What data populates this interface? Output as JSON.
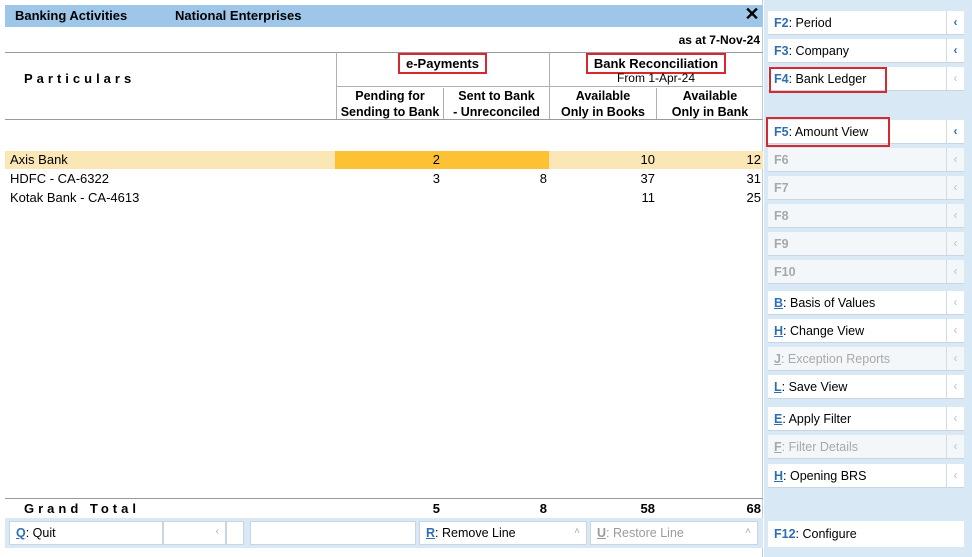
{
  "title": {
    "report": "Banking Activities",
    "company": "National Enterprises"
  },
  "as_at": "as at 7-Nov-24",
  "header": {
    "particulars": "Particulars",
    "epayments": "e-Payments",
    "bank_recon": "Bank Reconciliation",
    "bank_recon_sub": "From 1-Apr-24",
    "col1": [
      "Pending for",
      "Sending to Bank"
    ],
    "col2": [
      "Sent to Bank",
      "- Unreconciled"
    ],
    "col3": [
      "Available",
      "Only in Books"
    ],
    "col4": [
      "Available",
      "Only in Bank"
    ]
  },
  "rows": [
    {
      "name": "Axis Bank",
      "c1": "2",
      "c2": "",
      "c3": "10",
      "c4": "12"
    },
    {
      "name": "HDFC - CA-6322",
      "c1": "3",
      "c2": "8",
      "c3": "37",
      "c4": "31"
    },
    {
      "name": "Kotak Bank - CA-4613",
      "c1": "",
      "c2": "",
      "c3": "11",
      "c4": "25"
    }
  ],
  "grand_total": {
    "label": "Grand Total",
    "c1": "5",
    "c2": "8",
    "c3": "58",
    "c4": "68"
  },
  "bottom": {
    "quit_key": "Q",
    "quit_label": ": Quit",
    "remove_key": "R",
    "remove_label": ": Remove Line",
    "restore_key": "U",
    "restore_label": ": Restore Line"
  },
  "side": {
    "f2_key": "F2",
    "f2_label": ": Period",
    "f3_key": "F3",
    "f3_label": ": Company",
    "f4_key": "F4",
    "f4_label": ": Bank Ledger",
    "f5_key": "F5",
    "f5_label": ": Amount View",
    "f6": "F6",
    "f7": "F7",
    "f8": "F8",
    "f9": "F9",
    "f10": "F10",
    "b_key": "B",
    "b_label": ": Basis of Values",
    "h_key": "H",
    "h_label": ": Change View",
    "j_key": "J",
    "j_label": ": Exception Reports",
    "l_key": "L",
    "l_label": ": Save View",
    "e_key": "E",
    "e_label": ": Apply Filter",
    "ff_key": "F",
    "ff_label": ": Filter Details",
    "h2_key": "H",
    "h2_label": ": Opening BRS",
    "f12_key": "F12",
    "f12_label": ": Configure"
  }
}
